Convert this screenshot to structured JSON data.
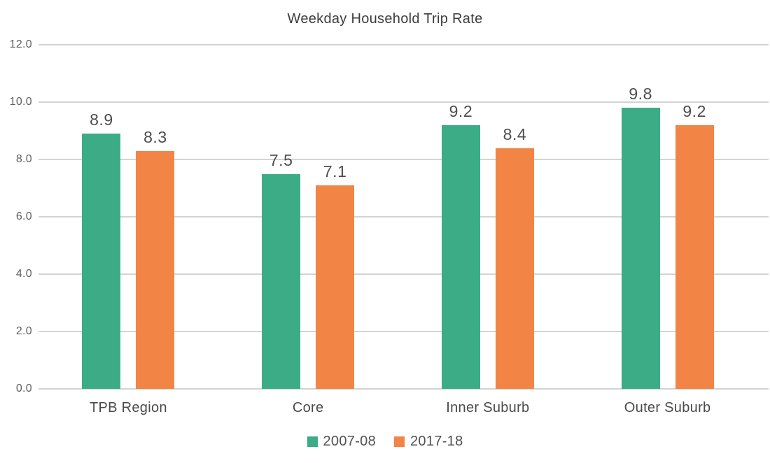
{
  "chart_data": {
    "type": "bar",
    "title": "Weekday Household Trip Rate",
    "categories": [
      "TPB Region",
      "Core",
      "Inner Suburb",
      "Outer Suburb"
    ],
    "series": [
      {
        "name": "2007-08",
        "color": "#3BAC85",
        "values": [
          8.9,
          7.5,
          9.2,
          9.8
        ]
      },
      {
        "name": "2017-18",
        "color": "#F28446",
        "values": [
          8.3,
          7.1,
          8.4,
          9.2
        ]
      }
    ],
    "ylim": [
      0,
      12
    ],
    "ytick_step": 2,
    "ytick_labels": [
      "0.0",
      "2.0",
      "4.0",
      "6.0",
      "8.0",
      "10.0",
      "12.0"
    ],
    "grid": true,
    "legend_position": "bottom",
    "value_labels_shown": true
  }
}
